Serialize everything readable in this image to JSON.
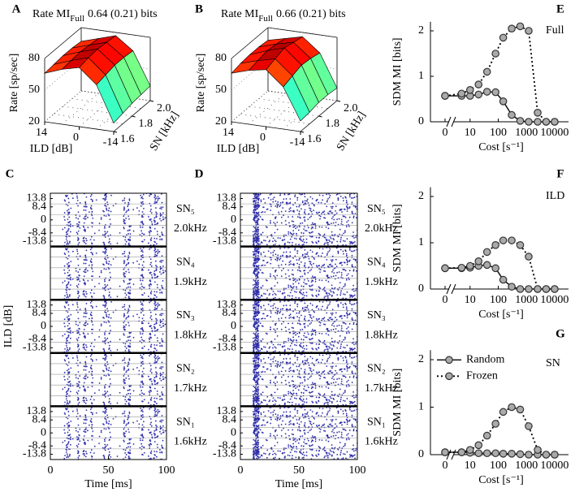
{
  "chart_data": [
    {
      "type": "surface",
      "panel_label": "A",
      "title": "Rate MI",
      "title_sub": "Full",
      "title_value": "0.64 (0.21) bits",
      "x_label": "ILD [dB]",
      "y_label": "SN [kHz]",
      "z_label": "Rate [sp/sec]",
      "x": [
        -14,
        -7,
        0,
        7,
        14
      ],
      "y": [
        1.6,
        1.7,
        1.8,
        1.9,
        2.0
      ],
      "z": [
        [
          28,
          62,
          76,
          72,
          66
        ],
        [
          30,
          64,
          78,
          73,
          67
        ],
        [
          32,
          66,
          79,
          74,
          68
        ],
        [
          33,
          66,
          78,
          73,
          68
        ],
        [
          34,
          65,
          77,
          72,
          67
        ]
      ],
      "xlim": [
        14,
        -14
      ],
      "ylim": [
        1.6,
        2.0
      ],
      "zlim": [
        20,
        80
      ],
      "xticks": [
        14,
        0,
        -14
      ],
      "yticks": [
        1.6,
        1.8,
        {
          "value": 2,
          "label": "2.0"
        }
      ],
      "zticks": [
        20,
        50,
        80
      ]
    },
    {
      "type": "surface",
      "panel_label": "B",
      "title": "Rate MI",
      "title_sub": "Full",
      "title_value": "0.66 (0.21) bits",
      "x_label": "ILD [dB]",
      "y_label": "SN [kHz]",
      "z_label": "Rate [sp/sec]",
      "x": [
        -14,
        -7,
        0,
        7,
        14
      ],
      "y": [
        1.6,
        1.7,
        1.8,
        1.9,
        2.0
      ],
      "z": [
        [
          30,
          60,
          74,
          71,
          66
        ],
        [
          31,
          63,
          77,
          73,
          68
        ],
        [
          33,
          66,
          80,
          75,
          69
        ],
        [
          33,
          65,
          78,
          74,
          69
        ],
        [
          32,
          63,
          76,
          72,
          68
        ]
      ],
      "xlim": [
        14,
        -14
      ],
      "ylim": [
        1.6,
        2.0
      ],
      "zlim": [
        20,
        80
      ],
      "xticks": [
        14,
        0,
        -14
      ],
      "yticks": [
        1.6,
        1.8,
        {
          "value": 2,
          "label": "2.0"
        }
      ],
      "zticks": [
        20,
        50,
        80
      ]
    },
    {
      "type": "line",
      "panel_label": "E",
      "annotation": "Full",
      "x_label": "Cost [s⁻¹]",
      "y_label": "SDM MI [bits]",
      "x": [
        0,
        5,
        10,
        20,
        40,
        80,
        150,
        300,
        600,
        1200,
        2500,
        5000,
        10000
      ],
      "xscale": "log",
      "axis_break": true,
      "xlim": [
        4,
        14000
      ],
      "xticks": [
        0,
        10,
        100,
        1000,
        10000
      ],
      "ylim": [
        0,
        2.2
      ],
      "yticks": [
        0,
        1,
        2
      ],
      "series": [
        {
          "color": "#000000",
          "marker_fill": "#aaaaaa",
          "line": "solid",
          "values": [
            0.57,
            0.57,
            0.57,
            0.6,
            0.66,
            0.65,
            0.45,
            0.15,
            0.02,
            0,
            0,
            0,
            0
          ]
        },
        {
          "color": "#000000",
          "marker_fill": "#aaaaaa",
          "line": "dotted",
          "values": [
            0.57,
            0.62,
            0.7,
            0.82,
            1.1,
            1.5,
            1.85,
            2.05,
            2.1,
            2.0,
            0.2,
            0,
            0
          ]
        }
      ]
    },
    {
      "type": "line",
      "panel_label": "F",
      "annotation": "ILD",
      "x_label": "Cost [s⁻¹]",
      "y_label": "SDM MI [bits]",
      "x": [
        0,
        5,
        10,
        20,
        40,
        80,
        150,
        300,
        600,
        1200,
        2500,
        5000,
        10000
      ],
      "xscale": "log",
      "axis_break": true,
      "xlim": [
        4,
        14000
      ],
      "xticks": [
        0,
        10,
        100,
        1000,
        10000
      ],
      "ylim": [
        0,
        2.2
      ],
      "yticks": [
        0,
        1,
        2
      ],
      "series": [
        {
          "color": "#000000",
          "marker_fill": "#aaaaaa",
          "line": "solid",
          "values": [
            0.45,
            0.45,
            0.46,
            0.5,
            0.52,
            0.45,
            0.2,
            0.05,
            0,
            0,
            0,
            0,
            0
          ]
        },
        {
          "color": "#000000",
          "marker_fill": "#aaaaaa",
          "line": "dotted",
          "values": [
            0.45,
            0.46,
            0.5,
            0.6,
            0.8,
            0.95,
            1.05,
            1.05,
            0.95,
            0.7,
            0,
            0,
            0
          ]
        }
      ]
    },
    {
      "type": "line",
      "panel_label": "G",
      "annotation": "SN",
      "x_label": "Cost [s⁻¹]",
      "y_label": "SDM MI [bits]",
      "x": [
        0,
        5,
        10,
        20,
        40,
        80,
        150,
        300,
        600,
        1200,
        2500,
        5000,
        10000
      ],
      "xscale": "log",
      "axis_break": true,
      "xlim": [
        4,
        14000
      ],
      "xticks": [
        0,
        10,
        100,
        1000,
        10000
      ],
      "ylim": [
        0,
        2.2
      ],
      "yticks": [
        0,
        1,
        2
      ],
      "legend": "upper left",
      "series": [
        {
          "name": "Random",
          "color": "#000000",
          "marker_fill": "#aaaaaa",
          "line": "solid",
          "values": [
            0.05,
            0.05,
            0.04,
            0.03,
            0.03,
            0.03,
            0.02,
            0.02,
            0.01,
            0,
            0,
            0,
            0
          ]
        },
        {
          "name": "Frozen",
          "color": "#000000",
          "marker_fill": "#aaaaaa",
          "line": "dotted",
          "values": [
            0.05,
            0.05,
            0.1,
            0.2,
            0.4,
            0.65,
            0.9,
            1.0,
            0.95,
            0.6,
            0.1,
            0,
            0
          ]
        }
      ]
    },
    {
      "type": "raster",
      "panel_label": "C",
      "x_label": "Time [ms]",
      "y_label": "ILD [dB]",
      "xlim": [
        0,
        100
      ],
      "xticks": [
        0,
        50,
        100
      ],
      "ylim": [
        -17.2,
        17.2
      ],
      "groups": [
        {
          "name": "SN₅",
          "freq": "2.0kHz",
          "yticks": [
            13.8,
            8.4,
            0,
            -8.4,
            -13.8
          ]
        },
        {
          "name": "SN₄",
          "freq": "1.9kHz"
        },
        {
          "name": "SN₃",
          "freq": "1.8kHz",
          "yticks": [
            13.8,
            8.4,
            0,
            -8.4,
            -13.8
          ]
        },
        {
          "name": "SN₂",
          "freq": "1.7kHz"
        },
        {
          "name": "SN₁",
          "freq": "1.6kHz",
          "yticks": [
            13.8,
            8.4,
            0,
            -8.4,
            -13.8
          ]
        }
      ]
    },
    {
      "type": "raster",
      "panel_label": "D",
      "x_label": "Time [ms]",
      "xlim": [
        0,
        100
      ],
      "xticks": [
        0,
        50,
        100
      ],
      "ylim": [
        -17.2,
        17.2
      ],
      "groups": [
        {
          "name": "SN₅",
          "freq": "2.0kHz",
          "yticks": [
            13.8,
            8.4,
            0,
            -8.4,
            -13.8
          ]
        },
        {
          "name": "SN₄",
          "freq": "1.9kHz"
        },
        {
          "name": "SN₃",
          "freq": "1.8kHz",
          "yticks": [
            13.8,
            8.4,
            0,
            -8.4,
            -13.8
          ]
        },
        {
          "name": "SN₂",
          "freq": "1.7kHz"
        },
        {
          "name": "SN₁",
          "freq": "1.6kHz",
          "yticks": [
            13.8,
            8.4,
            0,
            -8.4,
            -13.8
          ]
        }
      ]
    }
  ]
}
